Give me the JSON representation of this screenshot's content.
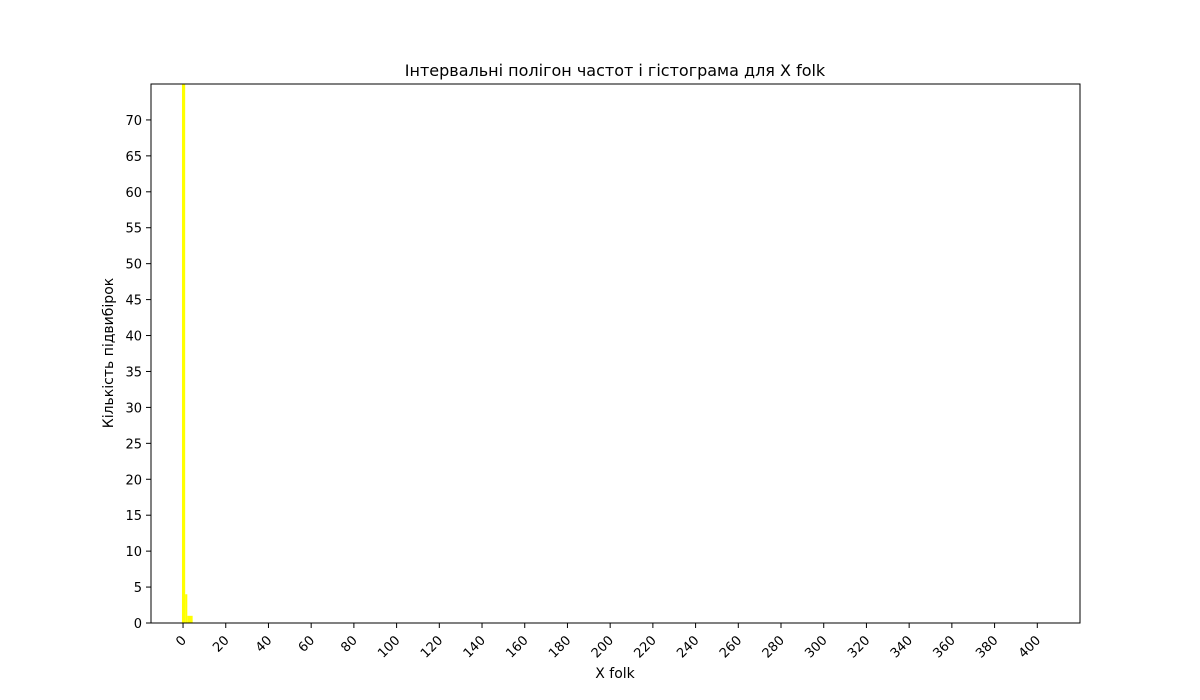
{
  "chart_data": {
    "type": "bar",
    "title": "Інтервальні полігон частот і гістограма для X folk",
    "xlabel": "X folk",
    "ylabel": "Кількість підвибірок",
    "xlim": [
      -15,
      420
    ],
    "ylim": [
      0,
      75
    ],
    "grid": false,
    "legend": "none",
    "colors": {
      "bars": "#ffff00",
      "frame": "#000000",
      "background": "#ffffff"
    },
    "x_ticks": [
      0,
      20,
      40,
      60,
      80,
      100,
      120,
      140,
      160,
      180,
      200,
      220,
      240,
      260,
      280,
      300,
      320,
      340,
      360,
      380,
      400
    ],
    "x_tick_labels": [
      "0",
      "20",
      "40",
      "60",
      "80",
      "100",
      "120",
      "140",
      "160",
      "180",
      "200",
      "220",
      "240",
      "260",
      "280",
      "300",
      "320",
      "340",
      "360",
      "380",
      "400"
    ],
    "y_ticks": [
      0,
      5,
      10,
      15,
      20,
      25,
      30,
      35,
      40,
      45,
      50,
      55,
      60,
      65,
      70
    ],
    "y_tick_labels": [
      "0",
      "5",
      "10",
      "15",
      "20",
      "25",
      "30",
      "35",
      "40",
      "45",
      "50",
      "55",
      "60",
      "65",
      "70"
    ],
    "bins": [
      {
        "start": -0.5,
        "end": 1.0,
        "count": 75
      },
      {
        "start": 1.0,
        "end": 2.0,
        "count": 4
      },
      {
        "start": 2.0,
        "end": 4.5,
        "count": 1
      }
    ]
  }
}
